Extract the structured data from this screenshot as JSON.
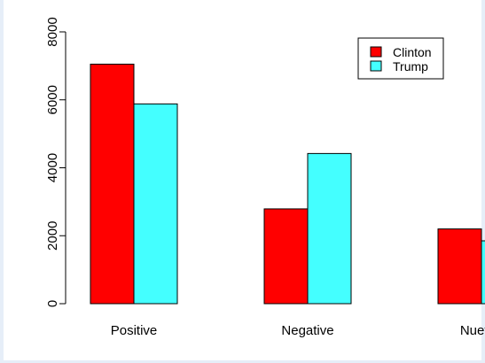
{
  "chart_data": {
    "type": "bar",
    "title": "",
    "xlabel": "",
    "ylabel": "",
    "categories": [
      "Positive",
      "Negative",
      "Nuetral"
    ],
    "series": [
      {
        "name": "Clinton",
        "color": "#ff0000",
        "values": [
          7050,
          2790,
          2200
        ]
      },
      {
        "name": "Trump",
        "color": "#44ffff",
        "values": [
          5880,
          4420,
          1850
        ]
      }
    ],
    "ylim": [
      0,
      8000
    ],
    "yticks": [
      "0",
      "2000",
      "4000",
      "6000",
      "8000"
    ],
    "grid": false,
    "legend_position": "top-right"
  }
}
